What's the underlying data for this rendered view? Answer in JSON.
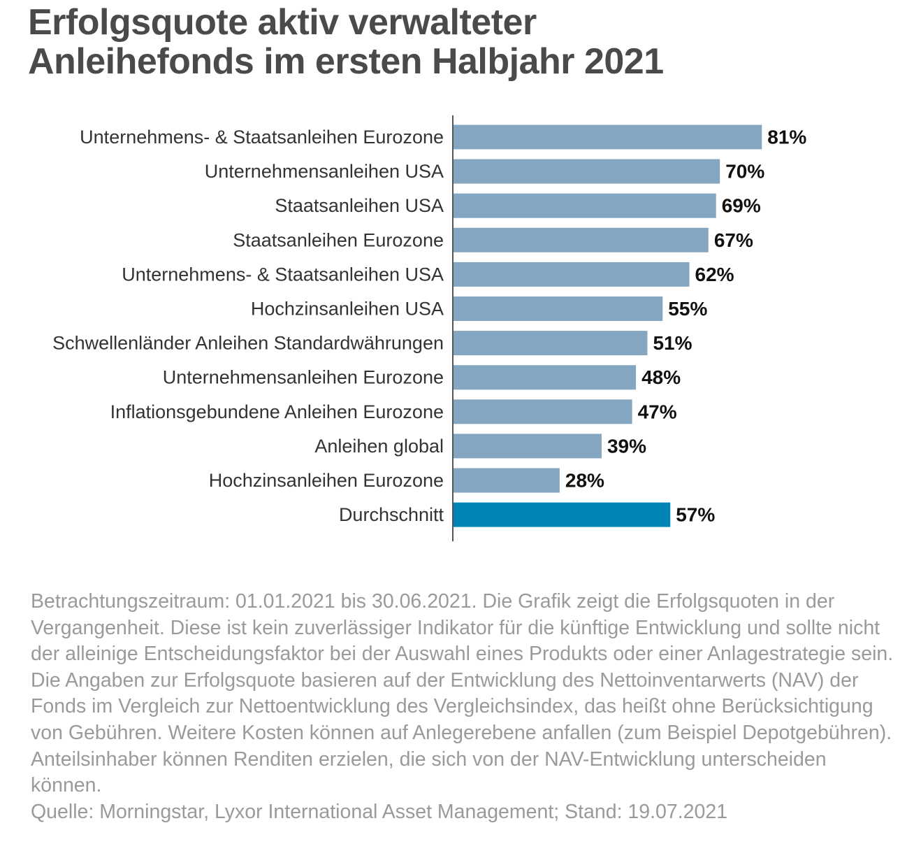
{
  "title": {
    "line1": "Erfolgsquote aktiv verwalteter",
    "line2": "Anleihefonds im ersten Halbjahr 2021"
  },
  "chart_data": {
    "type": "bar",
    "orientation": "horizontal",
    "title": "Erfolgsquote aktiv verwalteter Anleihefonds im ersten Halbjahr 2021",
    "categories": [
      "Unternehmens- & Staatsanleihen Eurozone",
      "Unternehmensanleihen USA",
      "Staatsanleihen USA",
      "Staatsanleihen Eurozone",
      "Unternehmens- & Staatsanleihen USA",
      "Hochzinsanleihen USA",
      "Schwellenländer Anleihen Standardwährungen",
      "Unternehmensanleihen Eurozone",
      "Inflationsgebundene Anleihen Eurozone",
      "Anleihen global",
      "Hochzinsanleihen Eurozone",
      "Durchschnitt"
    ],
    "values": [
      81,
      70,
      69,
      67,
      62,
      55,
      51,
      48,
      47,
      39,
      28,
      57
    ],
    "value_labels": [
      "81%",
      "70%",
      "69%",
      "67%",
      "62%",
      "55%",
      "51%",
      "48%",
      "47%",
      "39%",
      "28%",
      "57%"
    ],
    "unit": "%",
    "xlim": [
      0,
      100
    ],
    "grid": false,
    "legend": "none",
    "bar_color": "#84a6c1",
    "highlight_color": "#0083b5",
    "highlight_index": 11
  },
  "footnote": {
    "text": "Betrachtungszeitraum: 01.01.2021 bis 30.06.2021. Die Grafik zeigt die Erfolgsquoten in der Vergangenheit. Diese ist kein zuverlässiger Indikator für die künftige Entwicklung und sollte nicht der alleinige Entscheidungsfaktor bei der Auswahl eines Produkts oder einer Anlagestrategie sein. Die Angaben zur Erfolgsquote basieren auf der Entwicklung des Nettoinventarwerts (NAV) der Fonds im Vergleich zur Nettoentwicklung des Vergleichsindex, das heißt ohne Berücksichtigung von Gebühren. Weitere Kosten können auf Anlegerebene anfallen (zum Beispiel Depotgebühren). Anteilsinhaber können Renditen erzielen, die sich von der NAV-Entwicklung unterscheiden können.",
    "source": "Quelle: Morningstar, Lyxor International Asset Management; Stand: 19.07.2021"
  }
}
